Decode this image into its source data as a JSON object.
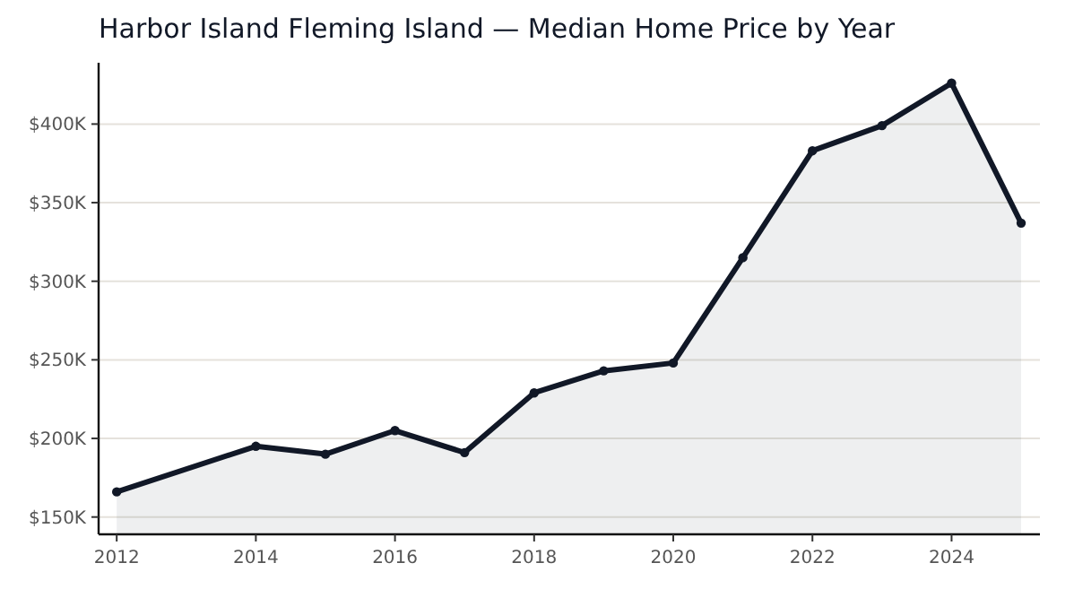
{
  "chart_data": {
    "type": "area",
    "title": "Harbor Island Fleming Island — Median Home Price by Year",
    "x": [
      2012,
      2014,
      2015,
      2016,
      2017,
      2018,
      2019,
      2020,
      2021,
      2022,
      2023,
      2024,
      2025
    ],
    "series": [
      {
        "color": "#111827",
        "values": [
          166,
          195,
          190,
          205,
          191,
          229,
          243,
          248,
          315,
          383,
          399,
          426,
          337
        ]
      }
    ],
    "xlim": [
      2011.74,
      2025.27
    ],
    "ylim": [
      139,
      439
    ],
    "xticks": [
      2012,
      2014,
      2016,
      2018,
      2020,
      2022,
      2024
    ],
    "yticks": [
      {
        "value": 150,
        "label": "$150K"
      },
      {
        "value": 200,
        "label": "$200K"
      },
      {
        "value": 250,
        "label": "$250K"
      },
      {
        "value": 300,
        "label": "$300K"
      },
      {
        "value": 350,
        "label": "$350K"
      },
      {
        "value": 400,
        "label": "$400K"
      }
    ],
    "grid": "y",
    "marker": "circle",
    "line_style": "solid"
  }
}
